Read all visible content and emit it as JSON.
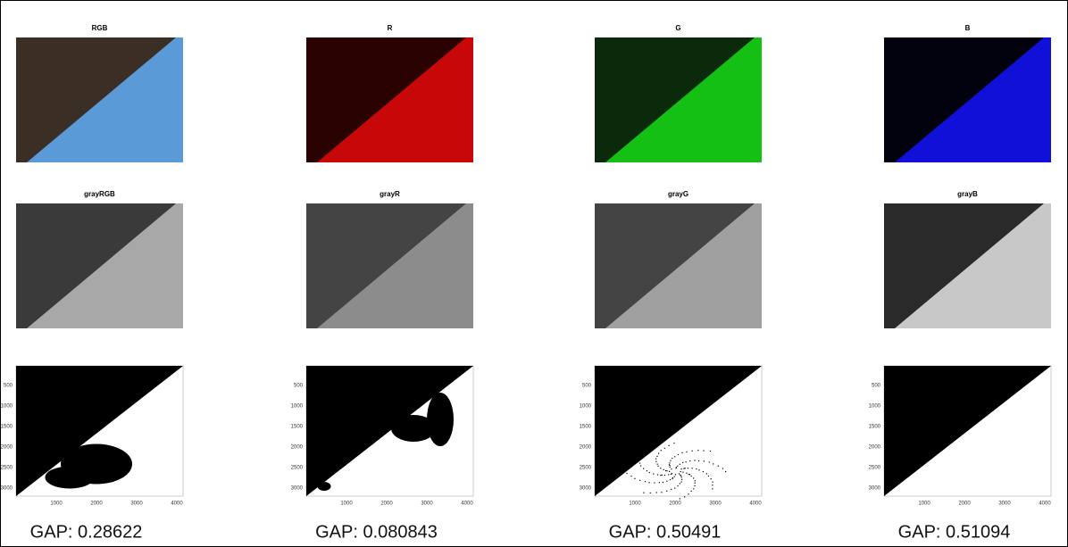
{
  "top_panels": [
    {
      "title": "RGB"
    },
    {
      "title": "R"
    },
    {
      "title": "G"
    },
    {
      "title": "B"
    }
  ],
  "gray_panels": [
    {
      "title": "grayRGB"
    },
    {
      "title": "grayR"
    },
    {
      "title": "grayG"
    },
    {
      "title": "grayB"
    }
  ],
  "binary_panels": [
    {
      "yticks": [
        "500",
        "1000",
        "1500",
        "2000",
        "2500",
        "3000"
      ],
      "xticks": [
        "1000",
        "2000",
        "3000",
        "4000"
      ],
      "caption": "GAP: 0.28622"
    },
    {
      "yticks": [
        "500",
        "1000",
        "1500",
        "2000",
        "2500",
        "3000"
      ],
      "xticks": [
        "1000",
        "2000",
        "3000",
        "4000"
      ],
      "caption": "GAP: 0.080843"
    },
    {
      "yticks": [
        "500",
        "1000",
        "1500",
        "2000",
        "2500",
        "3000"
      ],
      "xticks": [
        "1000",
        "2000",
        "3000",
        "4000"
      ],
      "caption": "GAP: 0.50491"
    },
    {
      "yticks": [
        "500",
        "1000",
        "1500",
        "2000",
        "2500",
        "3000"
      ],
      "xticks": [
        "1000",
        "2000",
        "3000",
        "4000"
      ],
      "caption": "GAP: 0.51094"
    }
  ]
}
